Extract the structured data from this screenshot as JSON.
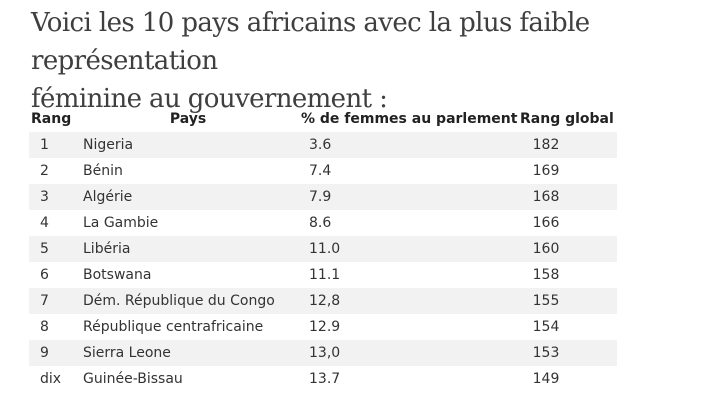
{
  "intro": {
    "line1": "Voici les 10 pays africains avec la plus faible représentation",
    "line2": "féminine au gouvernement :"
  },
  "table": {
    "headers": {
      "rank": "Rang",
      "country": "Pays",
      "pct": "% de femmes au parlement",
      "global": "Rang global"
    },
    "rows": [
      {
        "rank": "1",
        "country": "Nigeria",
        "pct": "3.6",
        "global": "182"
      },
      {
        "rank": "2",
        "country": "Bénin",
        "pct": "7.4",
        "global": "169"
      },
      {
        "rank": "3",
        "country": "Algérie",
        "pct": "7.9",
        "global": "168"
      },
      {
        "rank": "4",
        "country": "La Gambie",
        "pct": "8.6",
        "global": "166"
      },
      {
        "rank": "5",
        "country": "Libéria",
        "pct": "11.0",
        "global": "160"
      },
      {
        "rank": "6",
        "country": "Botswana",
        "pct": "11.1",
        "global": "158"
      },
      {
        "rank": "7",
        "country": "Dém. République du Congo",
        "pct": "12,8",
        "global": "155"
      },
      {
        "rank": "8",
        "country": "République centrafricaine",
        "pct": "12.9",
        "global": "154"
      },
      {
        "rank": "9",
        "country": "Sierra Leone",
        "pct": "13,0",
        "global": "153"
      },
      {
        "rank": "dix",
        "country": "Guinée-Bissau",
        "pct": "13.7",
        "global": "149"
      }
    ]
  }
}
